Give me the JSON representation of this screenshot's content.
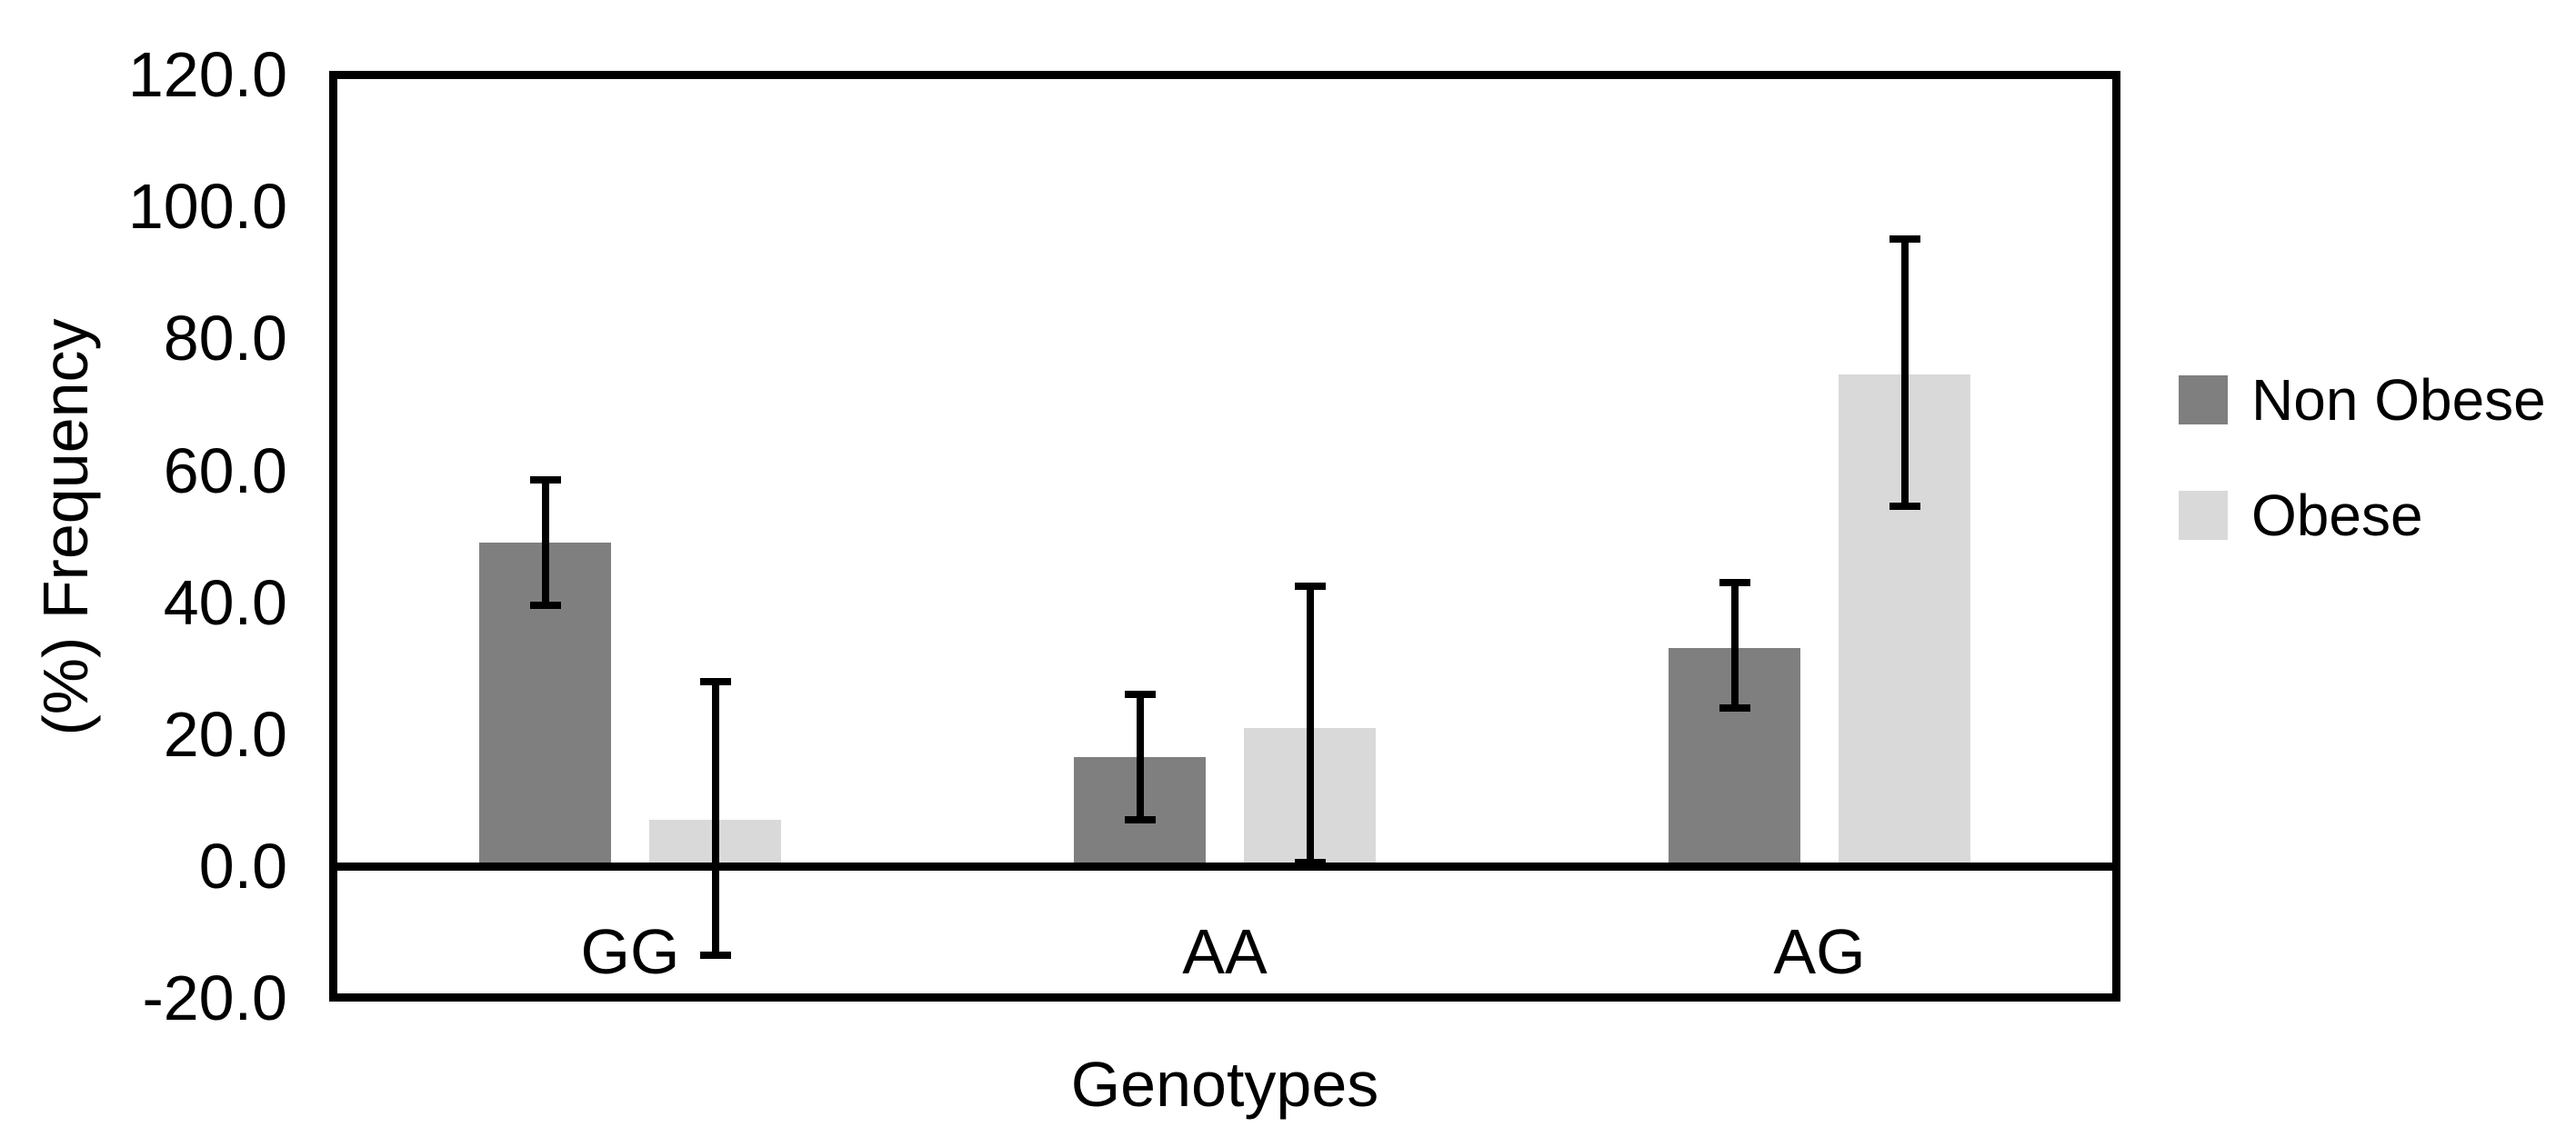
{
  "chart_data": {
    "type": "bar",
    "title": "",
    "xlabel": "Genotypes",
    "ylabel": "(%) Frequency",
    "categories": [
      "GG",
      "AA",
      "AG"
    ],
    "series": [
      {
        "name": "Non Obese",
        "color": "#7f7f7f",
        "values": [
          49.0,
          16.5,
          33.0
        ],
        "error_low": [
          39.5,
          7.0,
          24.0
        ],
        "error_high": [
          58.5,
          26.0,
          43.0
        ]
      },
      {
        "name": "Obese",
        "color": "#d9d9d9",
        "values": [
          7.0,
          21.0,
          74.5
        ],
        "error_low": [
          -13.5,
          0.5,
          54.5
        ],
        "error_high": [
          28.0,
          42.5,
          95.0
        ]
      }
    ],
    "ylim": [
      -20.0,
      120.0
    ],
    "ytick_step": 20,
    "yticks": [
      {
        "value": 120,
        "label": "120.0"
      },
      {
        "value": 100,
        "label": "100.0"
      },
      {
        "value": 80,
        "label": "80.0"
      },
      {
        "value": 60,
        "label": "60.0"
      },
      {
        "value": 40,
        "label": "40.0"
      },
      {
        "value": 20,
        "label": "20.0"
      },
      {
        "value": 0,
        "label": "0.0"
      },
      {
        "value": -20,
        "label": "-20.0"
      }
    ],
    "grid": false,
    "legend_position": "right",
    "error_bar_color": "#000000",
    "axis_color": "#000000",
    "background_color": "#ffffff"
  }
}
